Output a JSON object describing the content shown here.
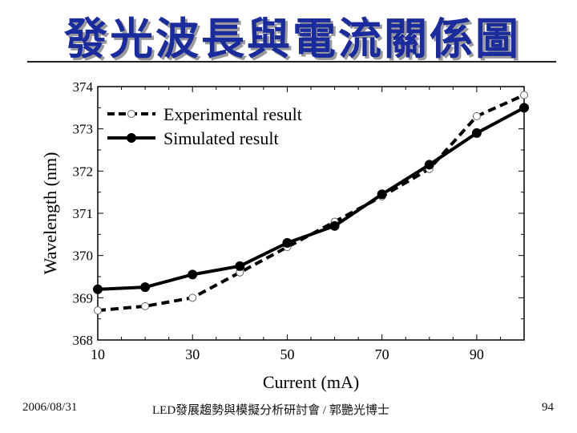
{
  "slide": {
    "title": "發光波長與電流關係圖",
    "footer_date": "2006/08/31",
    "footer_center": "LED發展趨勢與模擬分析研討會 / 郭艷光博士",
    "page_number": "94"
  },
  "colors": {
    "title": "#1a2b9e",
    "title_shadow": "#9a9a9a",
    "series": "#000000"
  },
  "chart_data": {
    "type": "line",
    "title": "",
    "xlabel": "Current (mA)",
    "ylabel": "Wavelength (nm)",
    "xlim": [
      10,
      100
    ],
    "ylim": [
      368,
      374
    ],
    "xticks": [
      10,
      30,
      50,
      70,
      90
    ],
    "yticks": [
      368,
      369,
      370,
      371,
      372,
      373,
      374
    ],
    "legend_position": "top-left",
    "series": [
      {
        "name": "Experimental result",
        "style": "dashed",
        "marker": "open-circle",
        "x": [
          10,
          20,
          30,
          40,
          50,
          60,
          70,
          80,
          90,
          100
        ],
        "y": [
          368.7,
          368.8,
          369.0,
          369.6,
          370.2,
          370.8,
          371.4,
          372.05,
          373.3,
          373.8
        ]
      },
      {
        "name": "Simulated result",
        "style": "solid",
        "marker": "filled-circle",
        "x": [
          10,
          20,
          30,
          40,
          50,
          60,
          70,
          80,
          90,
          100
        ],
        "y": [
          369.2,
          369.25,
          369.55,
          369.75,
          370.3,
          370.7,
          371.45,
          372.15,
          372.9,
          373.5
        ]
      }
    ]
  }
}
